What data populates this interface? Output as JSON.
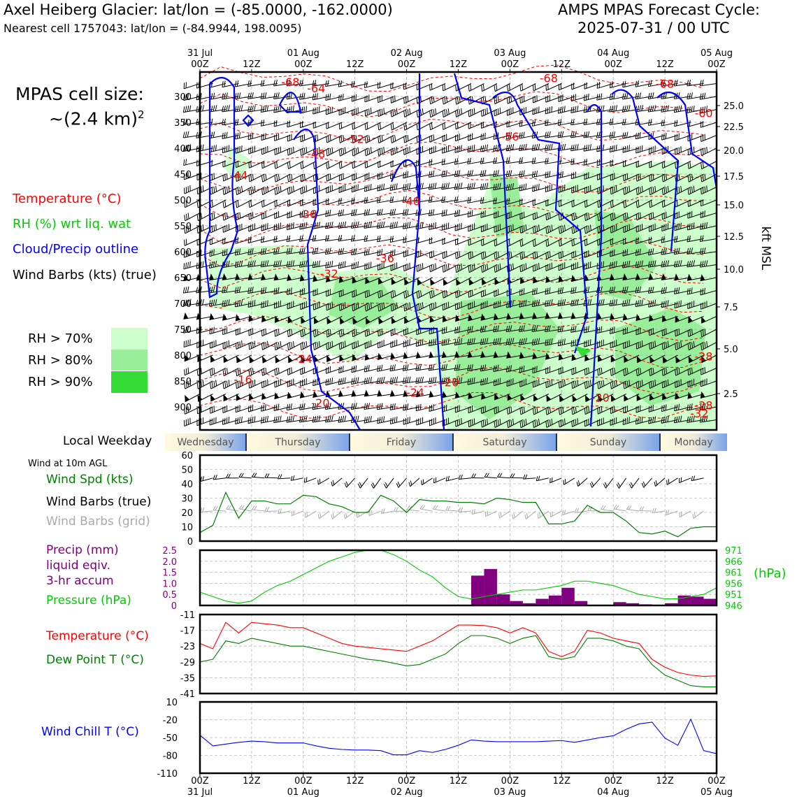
{
  "header": {
    "location": "Axel Heiberg Glacier: lat/lon = (-85.0000, -162.0000)",
    "nearest_cell": "Nearest cell 1757043: lat/lon = (-84.9944, 198.0095)",
    "forecast_title": "AMPS MPAS Forecast Cycle:",
    "forecast_cycle": "2025-07-31 / 00 UTC"
  },
  "sidebar": {
    "cell_size_label": "MPAS cell size:",
    "cell_size_value": "~(2.4 km)",
    "cell_size_exp": "2",
    "legend_temperature": "Temperature (°C)",
    "legend_rh": "RH (%) wrt liq. wat",
    "legend_cloud": "Cloud/Precip outline",
    "legend_wind": "Wind Barbs (kts) (true)",
    "rh_70": "RH > 70%",
    "rh_80": "RH > 80%",
    "rh_90": "RH > 90%",
    "local_weekday": "Local Weekday",
    "wind_10m": "Wind at 10m AGL",
    "wind_spd": "Wind Spd (kts)",
    "wind_barbs_true": "Wind Barbs (true)",
    "wind_barbs_grid": "Wind Barbs (grid)",
    "precip_1": "Precip (mm)",
    "precip_2": "liquid eqiv.",
    "precip_3": "3-hr accum",
    "pressure": "Pressure (hPa)",
    "temperature": "Temperature (°C)",
    "dewpoint": "Dew Point T (°C)",
    "windchill": "Wind Chill T (°C)"
  },
  "colors": {
    "temperature": "#ff0000",
    "rh_70": "#ccffcc",
    "rh_80": "#99ee99",
    "rh_90": "#33dd33",
    "cloud": "#0000ff",
    "pressure": "#00cc00",
    "precip": "#800080",
    "dewpoint": "#008000",
    "windchill": "#0000ff"
  },
  "time_axis": {
    "top_ticks": [
      [
        "31 Jul",
        "00Z"
      ],
      [
        "",
        "12Z"
      ],
      [
        "01 Aug",
        "00Z"
      ],
      [
        "",
        "12Z"
      ],
      [
        "02 Aug",
        "00Z"
      ],
      [
        "",
        "12Z"
      ],
      [
        "03 Aug",
        "00Z"
      ],
      [
        "",
        "12Z"
      ],
      [
        "04 Aug",
        "00Z"
      ],
      [
        "",
        "12Z"
      ],
      [
        "05 Aug",
        "00Z"
      ]
    ],
    "weekdays": [
      "Wednesday",
      "Thursday",
      "Friday",
      "Saturday",
      "Sunday",
      "Monday"
    ]
  },
  "chart_data": [
    {
      "type": "heatmap",
      "title": "",
      "ylabel_left": "",
      "ylabel_right": "kft MSL",
      "y_left_ticks_hpa": [
        300,
        350,
        400,
        450,
        500,
        550,
        600,
        650,
        700,
        750,
        800,
        850,
        900
      ],
      "y_right_ticks_kft": [
        "25.0",
        "22.5",
        "20.0",
        "17.5",
        "15.0",
        "12.5",
        "10.0",
        "7.5",
        "5.0",
        "2.5"
      ],
      "temperature_contour_labels": [
        {
          "label": "-68",
          "time_h": 21,
          "p": 280
        },
        {
          "label": "-64",
          "time_h": 27,
          "p": 292
        },
        {
          "label": "-68",
          "time_h": 81,
          "p": 272
        },
        {
          "label": "-68",
          "time_h": 108,
          "p": 283
        },
        {
          "label": "-60",
          "time_h": 117,
          "p": 340
        },
        {
          "label": "-52",
          "time_h": 36,
          "p": 390
        },
        {
          "label": "-56",
          "time_h": 72,
          "p": 385
        },
        {
          "label": "-48",
          "time_h": 27,
          "p": 418
        },
        {
          "label": "-44",
          "time_h": 9,
          "p": 460
        },
        {
          "label": "-40",
          "time_h": 49,
          "p": 510
        },
        {
          "label": "-36",
          "time_h": 25,
          "p": 535
        },
        {
          "label": "-36",
          "time_h": 43,
          "p": 620
        },
        {
          "label": "-32",
          "time_h": 30,
          "p": 650
        },
        {
          "label": "-28",
          "time_h": 117,
          "p": 810
        },
        {
          "label": "-24",
          "time_h": 24,
          "p": 815
        },
        {
          "label": "-24",
          "time_h": 50,
          "p": 880
        },
        {
          "label": "-20",
          "time_h": 58,
          "p": 860
        },
        {
          "label": "-16",
          "time_h": 10,
          "p": 855
        },
        {
          "label": "-20",
          "time_h": 28,
          "p": 900
        },
        {
          "label": "-20",
          "time_h": 93,
          "p": 890
        },
        {
          "label": "-28",
          "time_h": 117,
          "p": 905
        },
        {
          "label": "-32",
          "time_h": 116,
          "p": 920
        }
      ],
      "wind_barbs_per_level_kts": "20-50"
    },
    {
      "type": "line",
      "title": "",
      "x_hours": [
        0,
        3,
        6,
        9,
        12,
        15,
        18,
        21,
        24,
        27,
        30,
        33,
        36,
        39,
        42,
        45,
        48,
        51,
        54,
        57,
        60,
        63,
        66,
        69,
        72,
        75,
        78,
        81,
        84,
        87,
        90,
        93,
        96,
        99,
        102,
        105,
        108,
        111,
        114,
        117,
        120
      ],
      "series": [
        {
          "name": "Wind Spd (kts)",
          "values": [
            6,
            11,
            34,
            16,
            28,
            28,
            26,
            26,
            32,
            31,
            26,
            24,
            20,
            20,
            32,
            28,
            20,
            29,
            28,
            28,
            27,
            27,
            26,
            30,
            29,
            27,
            27,
            12,
            12,
            14,
            25,
            20,
            20,
            14,
            6,
            5,
            7,
            3,
            9,
            10,
            10
          ]
        }
      ],
      "ylim": [
        0,
        60
      ],
      "yticks": [
        0,
        10,
        20,
        30,
        40,
        50,
        60
      ]
    },
    {
      "type": "bar",
      "title": "",
      "x_hours": [
        0,
        3,
        6,
        9,
        12,
        15,
        18,
        21,
        24,
        27,
        30,
        33,
        36,
        39,
        42,
        45,
        48,
        51,
        54,
        57,
        60,
        63,
        66,
        69,
        72,
        75,
        78,
        81,
        84,
        87,
        90,
        93,
        96,
        99,
        102,
        105,
        108,
        111,
        114,
        117
      ],
      "precip_mm": [
        0,
        0,
        0,
        0,
        0,
        0,
        0,
        0,
        0,
        0,
        0,
        0,
        0,
        0,
        0,
        0,
        0,
        0,
        0,
        0,
        0,
        1.35,
        1.65,
        0.5,
        0.2,
        0.1,
        0.3,
        0.45,
        0.8,
        0.2,
        0,
        0,
        0.15,
        0.1,
        0.05,
        0.02,
        0.1,
        0.45,
        0.4,
        0.3
      ],
      "pressure_hpa": [
        952,
        950,
        948,
        947,
        948,
        952,
        955,
        957,
        960,
        963,
        966,
        968,
        970,
        971,
        971,
        969,
        966,
        962,
        959,
        954,
        950,
        949,
        950,
        951,
        952,
        953,
        953,
        954,
        955,
        957,
        957,
        956,
        955,
        953,
        951,
        950,
        949,
        949,
        950,
        951,
        954
      ],
      "precip_ylim": [
        0,
        2.5
      ],
      "precip_yticks": [
        "0",
        "0.5",
        "1.0",
        "1.5",
        "2.0",
        "2.5"
      ],
      "pressure_ylim": [
        946,
        971
      ],
      "pressure_yticks": [
        "946",
        "951",
        "956",
        "961",
        "966",
        "971"
      ],
      "ylabel_right": "(hPa)"
    },
    {
      "type": "line",
      "title": "",
      "x_hours": [
        0,
        3,
        6,
        9,
        12,
        15,
        18,
        21,
        24,
        27,
        30,
        33,
        36,
        39,
        42,
        45,
        48,
        51,
        54,
        57,
        60,
        63,
        66,
        69,
        72,
        75,
        78,
        81,
        84,
        87,
        90,
        93,
        96,
        99,
        102,
        105,
        108,
        111,
        114,
        117,
        120
      ],
      "series": [
        {
          "name": "Temperature (°C)",
          "values": [
            -22,
            -24,
            -14,
            -18,
            -14,
            -14.5,
            -15,
            -16,
            -16,
            -18,
            -20,
            -22,
            -23,
            -23.5,
            -24,
            -24.5,
            -25,
            -23,
            -21,
            -18,
            -15,
            -15,
            -15.2,
            -16,
            -18,
            -16,
            -18,
            -25,
            -27,
            -25,
            -17,
            -18,
            -20,
            -21,
            -22,
            -28,
            -31,
            -33,
            -34,
            -34.5,
            -34.3
          ]
        },
        {
          "name": "Dew Point T (°C)",
          "values": [
            -29,
            -28,
            -21,
            -22,
            -20,
            -21,
            -22,
            -23,
            -23,
            -24,
            -25,
            -26,
            -27,
            -28,
            -28.5,
            -29.5,
            -30.5,
            -30,
            -28,
            -26,
            -22,
            -19,
            -19,
            -20,
            -22,
            -20,
            -19,
            -27,
            -28,
            -27,
            -20,
            -20,
            -21,
            -23,
            -24,
            -30,
            -34,
            -36,
            -38,
            -38.5,
            -38.5
          ]
        }
      ],
      "ylim": [
        -41,
        -11
      ],
      "yticks": [
        -41,
        -35,
        -29,
        -23,
        -17,
        -11
      ]
    },
    {
      "type": "line",
      "title": "",
      "x_hours": [
        0,
        3,
        6,
        9,
        12,
        15,
        18,
        21,
        24,
        27,
        30,
        33,
        36,
        39,
        42,
        45,
        48,
        51,
        54,
        57,
        60,
        63,
        66,
        69,
        72,
        75,
        78,
        81,
        84,
        87,
        90,
        93,
        96,
        99,
        102,
        105,
        108,
        111,
        114,
        117,
        120
      ],
      "series": [
        {
          "name": "Wind Chill T (°C)",
          "values": [
            -46,
            -64,
            -61,
            -58,
            -56,
            -57,
            -59,
            -59,
            -59,
            -64,
            -68,
            -70,
            -71,
            -71,
            -72,
            -79,
            -79,
            -72,
            -75,
            -70,
            -63,
            -54,
            -56,
            -57,
            -57,
            -57,
            -57,
            -56,
            -55,
            -58,
            -54,
            -50,
            -47,
            -36,
            -27,
            -24,
            -51,
            -63,
            -19,
            -72,
            -77
          ]
        }
      ],
      "ylim": [
        -110,
        10
      ],
      "yticks": [
        "10",
        "-20",
        "-50",
        "-80",
        "-110"
      ]
    }
  ]
}
